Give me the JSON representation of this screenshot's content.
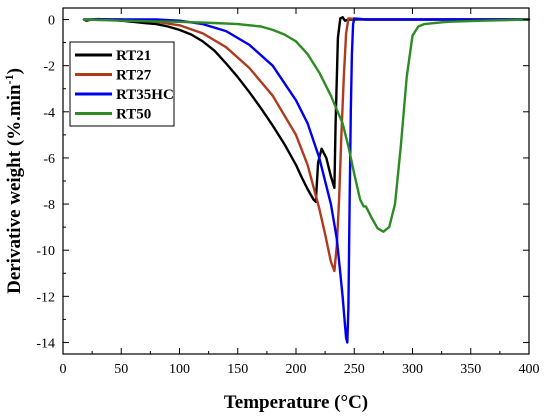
{
  "chart_data": {
    "type": "line",
    "xlabel": "Temperature (°C)",
    "ylabel_main": "Derivative weight (%.min",
    "ylabel_sup": "-1",
    "ylabel_close": ")",
    "xlim": [
      0,
      400
    ],
    "ylim": [
      -14.5,
      0.5
    ],
    "xticks": [
      0,
      50,
      100,
      150,
      200,
      250,
      300,
      350,
      400
    ],
    "yticks": [
      0,
      -2,
      -4,
      -6,
      -8,
      -10,
      -12,
      -14
    ],
    "grid": false,
    "legend_position": "top-left",
    "series": [
      {
        "name": "RT21",
        "color": "#000000",
        "x": [
          18,
          20,
          25,
          30,
          40,
          50,
          60,
          70,
          80,
          90,
          100,
          110,
          120,
          130,
          140,
          150,
          160,
          170,
          180,
          190,
          200,
          205,
          210,
          215,
          217,
          219,
          222,
          226,
          230,
          233,
          234,
          236,
          238,
          240,
          242,
          245,
          260,
          300,
          350,
          400
        ],
        "y": [
          0,
          -0.05,
          0,
          0.02,
          0,
          -0.05,
          -0.1,
          -0.15,
          -0.2,
          -0.3,
          -0.45,
          -0.65,
          -0.95,
          -1.35,
          -1.9,
          -2.5,
          -3.15,
          -3.85,
          -4.6,
          -5.4,
          -6.3,
          -6.85,
          -7.35,
          -7.8,
          -7.9,
          -6.2,
          -5.6,
          -6.0,
          -6.8,
          -7.3,
          -4.5,
          -0.8,
          0.05,
          0.1,
          -0.05,
          0,
          0,
          0,
          0,
          0
        ]
      },
      {
        "name": "RT27",
        "color": "#b03a1e",
        "x": [
          18,
          30,
          50,
          80,
          100,
          120,
          140,
          160,
          180,
          200,
          210,
          220,
          225,
          230,
          233,
          235,
          237,
          239,
          241,
          243,
          245,
          260,
          300,
          350,
          400
        ],
        "y": [
          0,
          0,
          0,
          -0.1,
          -0.25,
          -0.6,
          -1.2,
          -2.1,
          -3.3,
          -5.0,
          -6.3,
          -8.2,
          -9.3,
          -10.5,
          -10.9,
          -9.8,
          -7.8,
          -5.0,
          -2.5,
          -0.6,
          0.05,
          0,
          0,
          0,
          0
        ]
      },
      {
        "name": "RT35HC",
        "color": "#0000ee",
        "x": [
          18,
          30,
          50,
          80,
          100,
          120,
          140,
          160,
          180,
          200,
          210,
          220,
          230,
          235,
          238,
          240,
          242,
          243,
          244,
          245,
          246,
          247,
          248,
          249,
          250,
          260,
          300,
          350,
          400
        ],
        "y": [
          0,
          0,
          0,
          0,
          -0.05,
          -0.2,
          -0.5,
          -1.1,
          -2.0,
          -3.5,
          -4.5,
          -6.0,
          -8.0,
          -9.5,
          -11.0,
          -12.0,
          -13.2,
          -13.8,
          -14.0,
          -12.5,
          -8.0,
          -4.0,
          -1.5,
          -0.2,
          0.05,
          0,
          0,
          0,
          0
        ]
      },
      {
        "name": "RT50",
        "color": "#2e8b24",
        "x": [
          18,
          50,
          100,
          130,
          150,
          170,
          180,
          190,
          200,
          210,
          220,
          230,
          240,
          245,
          250,
          255,
          258,
          260,
          265,
          270,
          275,
          280,
          285,
          290,
          295,
          300,
          305,
          310,
          330,
          360,
          400
        ],
        "y": [
          0,
          -0.05,
          -0.1,
          -0.15,
          -0.2,
          -0.3,
          -0.45,
          -0.65,
          -0.95,
          -1.5,
          -2.3,
          -3.3,
          -4.5,
          -5.5,
          -6.7,
          -7.8,
          -8.1,
          -8.1,
          -8.6,
          -9.05,
          -9.2,
          -9.0,
          -8.0,
          -5.5,
          -2.5,
          -0.7,
          -0.3,
          -0.2,
          -0.1,
          -0.05,
          0
        ]
      }
    ]
  }
}
